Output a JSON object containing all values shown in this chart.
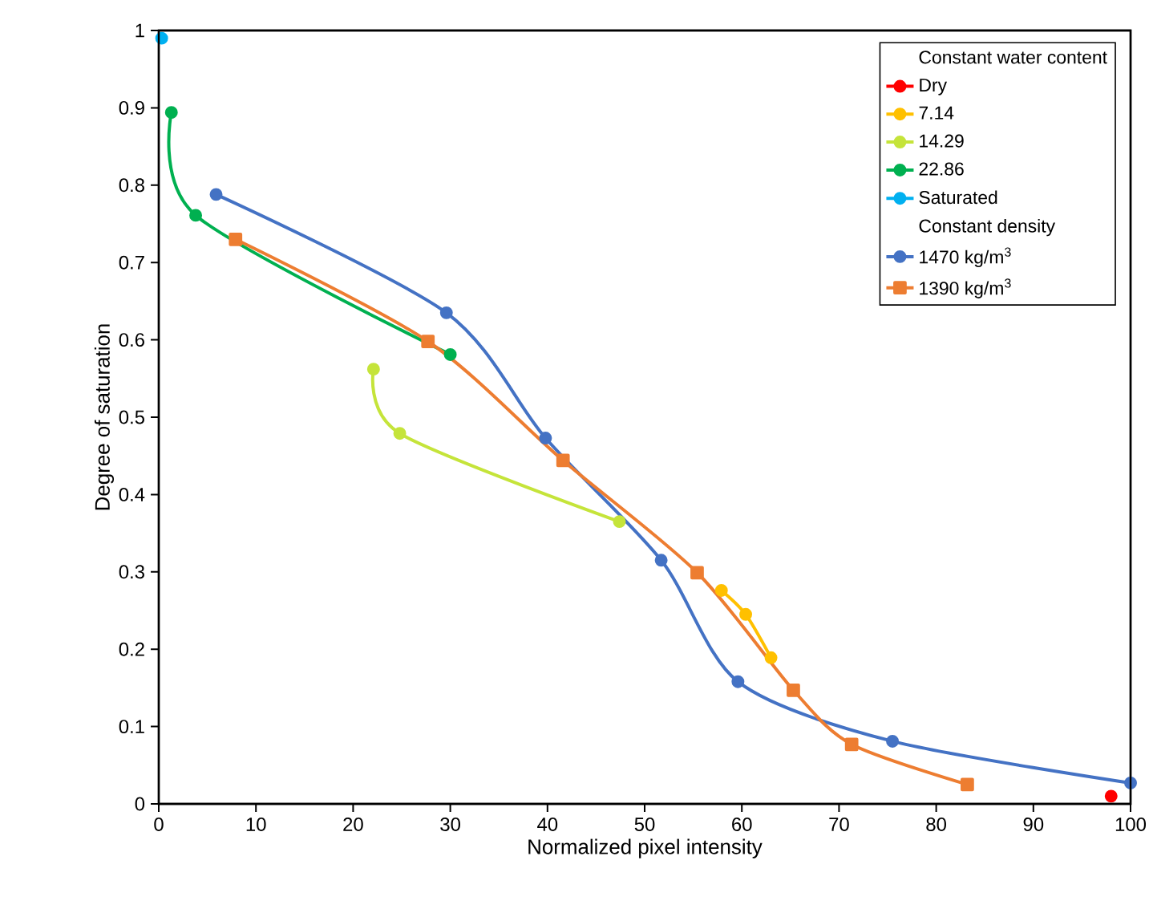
{
  "chart_data": {
    "type": "line",
    "xlabel": "Normalized pixel intensity",
    "ylabel": "Degree of saturation",
    "xlim": [
      0,
      100
    ],
    "ylim": [
      0,
      1
    ],
    "xticks": [
      0,
      10,
      20,
      30,
      40,
      50,
      60,
      70,
      80,
      90,
      100
    ],
    "yticks": [
      0,
      0.1,
      0.2,
      0.3,
      0.4,
      0.5,
      0.6,
      0.7,
      0.8,
      0.9,
      1
    ],
    "legend": "top right",
    "legend_title": "Constant water content",
    "annotations": [
      "Constant density"
    ],
    "line_style": "solid",
    "series": [
      {
        "name": "Dry",
        "color": "#ff0000",
        "marker": "circle",
        "x": [
          98.0
        ],
        "values": [
          0.01
        ]
      },
      {
        "name": "7.14",
        "color": "#ffc000",
        "marker": "circle",
        "x": [
          57.9,
          60.4,
          63.0
        ],
        "values": [
          0.276,
          0.245,
          0.189
        ]
      },
      {
        "name": "14.29",
        "color": "#c5e43a",
        "marker": "circle",
        "x": [
          22.1,
          24.8,
          47.4
        ],
        "values": [
          0.562,
          0.479,
          0.365
        ]
      },
      {
        "name": "22.86",
        "color": "#00b050",
        "marker": "circle",
        "x": [
          1.3,
          3.8,
          30.0
        ],
        "values": [
          0.894,
          0.761,
          0.581
        ]
      },
      {
        "name": "Saturated",
        "color": "#00b0f0",
        "marker": "circle",
        "x": [
          0.3
        ],
        "values": [
          0.99
        ]
      },
      {
        "name": "1470 kg/m$^{3}$",
        "color": "#4472c4",
        "marker": "circle",
        "x": [
          5.9,
          29.6,
          39.8,
          51.7,
          59.6,
          75.5,
          100
        ],
        "values": [
          0.788,
          0.635,
          0.473,
          0.315,
          0.158,
          0.081,
          0.027
        ]
      },
      {
        "name": "1390 kg/m$^{3}$",
        "color": "#ed7d31",
        "marker": "square",
        "x": [
          7.9,
          27.7,
          41.6,
          55.4,
          65.3,
          71.3,
          83.2
        ],
        "values": [
          0.73,
          0.598,
          0.444,
          0.299,
          0.147,
          0.077,
          0.025
        ]
      }
    ]
  }
}
